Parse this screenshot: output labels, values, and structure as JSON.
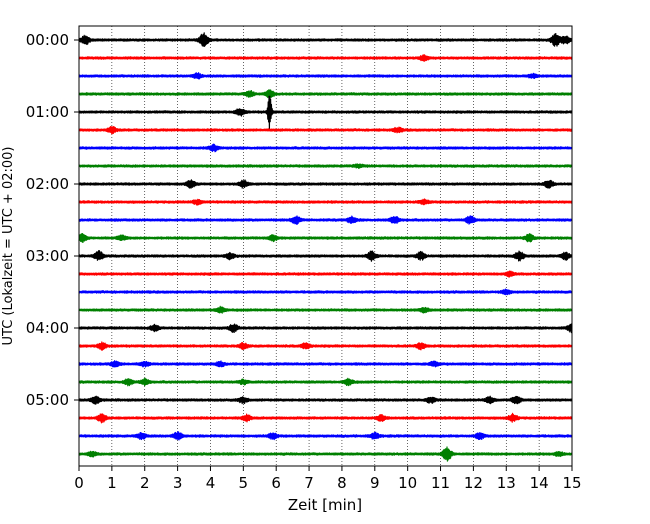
{
  "chart_data": {
    "type": "line",
    "subtype": "helicorder",
    "xlabel": "Zeit  [min]",
    "ylabel": "UTC (Lokalzeit = UTC + 02:00)",
    "xlim": [
      0,
      15
    ],
    "x_ticks": [
      "0",
      "1",
      "2",
      "3",
      "4",
      "5",
      "6",
      "7",
      "8",
      "9",
      "10",
      "11",
      "12",
      "13",
      "14",
      "15"
    ],
    "y_tick_labels": [
      "00:00",
      "01:00",
      "02:00",
      "03:00",
      "04:00",
      "05:00"
    ],
    "trace_interval_minutes": 15,
    "colors": [
      "#000000",
      "#ff0000",
      "#0000ff",
      "#008000"
    ],
    "x_grid": "dotted vertical at each minute",
    "traces": [
      {
        "start": "00:00",
        "color": "#000000",
        "events": [
          {
            "x": 0.2,
            "amp": 0.6
          },
          {
            "x": 3.8,
            "amp": 0.9
          },
          {
            "x": 14.5,
            "amp": 0.8
          },
          {
            "x": 14.8,
            "amp": 0.5
          }
        ]
      },
      {
        "start": "00:15",
        "color": "#ff0000",
        "events": [
          {
            "x": 10.5,
            "amp": 0.35
          }
        ]
      },
      {
        "start": "00:30",
        "color": "#0000ff",
        "events": [
          {
            "x": 3.6,
            "amp": 0.35
          },
          {
            "x": 13.8,
            "amp": 0.25
          }
        ]
      },
      {
        "start": "00:45",
        "color": "#008000",
        "events": [
          {
            "x": 5.2,
            "amp": 0.35
          },
          {
            "x": 5.8,
            "amp": 0.5
          }
        ]
      },
      {
        "start": "01:00",
        "color": "#000000",
        "events": [
          {
            "x": 4.9,
            "amp": 0.5
          },
          {
            "x": 5.8,
            "amp": 2.4
          }
        ]
      },
      {
        "start": "01:15",
        "color": "#ff0000",
        "events": [
          {
            "x": 1.0,
            "amp": 0.4
          },
          {
            "x": 9.7,
            "amp": 0.3
          }
        ]
      },
      {
        "start": "01:30",
        "color": "#0000ff",
        "events": [
          {
            "x": 4.1,
            "amp": 0.4
          }
        ]
      },
      {
        "start": "01:45",
        "color": "#008000",
        "events": [
          {
            "x": 8.5,
            "amp": 0.2
          }
        ]
      },
      {
        "start": "02:00",
        "color": "#000000",
        "events": [
          {
            "x": 3.4,
            "amp": 0.5
          },
          {
            "x": 5.0,
            "amp": 0.5
          },
          {
            "x": 14.3,
            "amp": 0.5
          }
        ]
      },
      {
        "start": "02:15",
        "color": "#ff0000",
        "events": [
          {
            "x": 3.6,
            "amp": 0.3
          },
          {
            "x": 10.5,
            "amp": 0.3
          }
        ]
      },
      {
        "start": "02:30",
        "color": "#0000ff",
        "events": [
          {
            "x": 6.6,
            "amp": 0.5
          },
          {
            "x": 8.3,
            "amp": 0.4
          },
          {
            "x": 9.6,
            "amp": 0.5
          },
          {
            "x": 11.9,
            "amp": 0.5
          }
        ]
      },
      {
        "start": "02:45",
        "color": "#008000",
        "events": [
          {
            "x": 0.1,
            "amp": 0.5
          },
          {
            "x": 1.3,
            "amp": 0.3
          },
          {
            "x": 5.9,
            "amp": 0.4
          },
          {
            "x": 13.7,
            "amp": 0.5
          }
        ]
      },
      {
        "start": "03:00",
        "color": "#000000",
        "events": [
          {
            "x": 0.6,
            "amp": 0.6
          },
          {
            "x": 4.6,
            "amp": 0.4
          },
          {
            "x": 8.9,
            "amp": 0.6
          },
          {
            "x": 10.4,
            "amp": 0.5
          },
          {
            "x": 13.4,
            "amp": 0.6
          },
          {
            "x": 14.8,
            "amp": 0.5
          }
        ]
      },
      {
        "start": "03:15",
        "color": "#ff0000",
        "events": [
          {
            "x": 13.1,
            "amp": 0.3
          }
        ]
      },
      {
        "start": "03:30",
        "color": "#0000ff",
        "events": [
          {
            "x": 13.0,
            "amp": 0.3
          }
        ]
      },
      {
        "start": "03:45",
        "color": "#008000",
        "events": [
          {
            "x": 4.3,
            "amp": 0.4
          },
          {
            "x": 10.5,
            "amp": 0.3
          }
        ]
      },
      {
        "start": "04:00",
        "color": "#000000",
        "events": [
          {
            "x": 2.3,
            "amp": 0.4
          },
          {
            "x": 4.7,
            "amp": 0.5
          },
          {
            "x": 15.0,
            "amp": 0.6
          }
        ]
      },
      {
        "start": "04:15",
        "color": "#ff0000",
        "events": [
          {
            "x": 0.7,
            "amp": 0.5
          },
          {
            "x": 5.0,
            "amp": 0.4
          },
          {
            "x": 6.9,
            "amp": 0.4
          },
          {
            "x": 10.4,
            "amp": 0.4
          }
        ]
      },
      {
        "start": "04:30",
        "color": "#0000ff",
        "events": [
          {
            "x": 1.1,
            "amp": 0.4
          },
          {
            "x": 2.0,
            "amp": 0.3
          },
          {
            "x": 4.3,
            "amp": 0.3
          },
          {
            "x": 10.8,
            "amp": 0.3
          }
        ]
      },
      {
        "start": "04:45",
        "color": "#008000",
        "events": [
          {
            "x": 1.5,
            "amp": 0.4
          },
          {
            "x": 2.0,
            "amp": 0.4
          },
          {
            "x": 5.0,
            "amp": 0.3
          },
          {
            "x": 8.2,
            "amp": 0.4
          }
        ]
      },
      {
        "start": "05:00",
        "color": "#000000",
        "events": [
          {
            "x": 0.5,
            "amp": 0.5
          },
          {
            "x": 5.0,
            "amp": 0.4
          },
          {
            "x": 10.7,
            "amp": 0.4
          },
          {
            "x": 12.5,
            "amp": 0.4
          },
          {
            "x": 13.3,
            "amp": 0.5
          }
        ]
      },
      {
        "start": "05:15",
        "color": "#ff0000",
        "events": [
          {
            "x": 0.7,
            "amp": 0.6
          },
          {
            "x": 5.1,
            "amp": 0.4
          },
          {
            "x": 9.2,
            "amp": 0.4
          },
          {
            "x": 13.2,
            "amp": 0.5
          }
        ]
      },
      {
        "start": "05:30",
        "color": "#0000ff",
        "events": [
          {
            "x": 1.9,
            "amp": 0.4
          },
          {
            "x": 3.0,
            "amp": 0.5
          },
          {
            "x": 5.9,
            "amp": 0.4
          },
          {
            "x": 9.0,
            "amp": 0.4
          },
          {
            "x": 12.2,
            "amp": 0.4
          }
        ]
      },
      {
        "start": "05:45",
        "color": "#008000",
        "events": [
          {
            "x": 0.4,
            "amp": 0.3
          },
          {
            "x": 11.2,
            "amp": 0.9
          },
          {
            "x": 14.6,
            "amp": 0.3
          }
        ]
      }
    ]
  }
}
